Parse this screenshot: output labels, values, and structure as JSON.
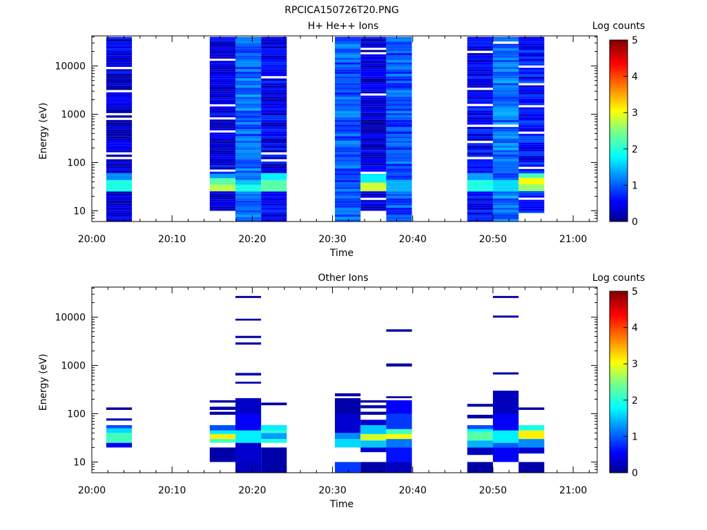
{
  "figure_title": "RPCICA150726T20.PNG",
  "chart_data": [
    {
      "type": "heatmap",
      "title": "H+ He++ Ions",
      "xlabel": "Time",
      "ylabel": "Energy (eV)",
      "colorbar_label": "Log counts",
      "x_ticks": [
        "20:00",
        "20:10",
        "20:20",
        "20:30",
        "20:40",
        "20:50",
        "21:00"
      ],
      "y_ticks": [
        "10",
        "100",
        "1000",
        "10000"
      ],
      "colorbar_ticks": [
        "0",
        "1",
        "2",
        "3",
        "4",
        "5"
      ],
      "xlim_minutes": [
        0,
        63
      ],
      "ylim_eV": [
        6,
        42000
      ],
      "y_scale": "log",
      "clim": [
        0,
        5
      ],
      "columns": [
        {
          "t0": 1.8,
          "t1": 5.0,
          "base": 0.45,
          "bot": 6,
          "top": 40000,
          "gaps": [
            1000,
            800,
            9000,
            3000,
            160,
            130
          ],
          "low": [
            [
              25,
              45,
              2.0
            ],
            [
              45,
              60,
              1.3
            ]
          ]
        },
        {
          "t0": 14.7,
          "t1": 17.9,
          "base": 0.5,
          "bot": 10,
          "top": 40000,
          "gaps": [
            800,
            450,
            1500,
            70,
            13000
          ],
          "low": [
            [
              25,
              35,
              2.8
            ],
            [
              35,
              45,
              2.3
            ],
            [
              45,
              60,
              1.4
            ]
          ]
        },
        {
          "t0": 17.9,
          "t1": 21.1,
          "base": 1.15,
          "bot": 6,
          "top": 40000,
          "gaps": [],
          "low": [
            [
              25,
              35,
              2.0
            ],
            [
              35,
              45,
              1.6
            ]
          ]
        },
        {
          "t0": 21.1,
          "t1": 24.3,
          "base": 0.55,
          "bot": 6,
          "top": 40000,
          "gaps": [
            110,
            160,
            6000
          ],
          "low": [
            [
              25,
              45,
              2.3
            ],
            [
              45,
              60,
              1.8
            ]
          ]
        },
        {
          "t0": 30.3,
          "t1": 33.5,
          "base": 1.05,
          "bot": 6,
          "top": 40000,
          "gaps": [],
          "low": []
        },
        {
          "t0": 33.5,
          "t1": 36.7,
          "base": 0.4,
          "bot": 10,
          "top": 40000,
          "gaps": [
            18000,
            22000,
            2500,
            60,
            18
          ],
          "low": [
            [
              25,
              40,
              2.9
            ],
            [
              40,
              60,
              1.8
            ]
          ]
        },
        {
          "t0": 36.7,
          "t1": 39.9,
          "base": 1.0,
          "bot": 6,
          "top": 40000,
          "gaps": [],
          "low": [
            [
              25,
              45,
              1.5
            ]
          ]
        },
        {
          "t0": 46.8,
          "t1": 50.0,
          "base": 0.6,
          "bot": 6,
          "top": 40000,
          "gaps": [
            19000,
            3300,
            1600,
            600,
            260,
            130
          ],
          "low": [
            [
              25,
              45,
              2.0
            ],
            [
              45,
              60,
              1.4
            ]
          ]
        },
        {
          "t0": 50.0,
          "t1": 53.2,
          "base": 1.2,
          "bot": 6,
          "top": 40000,
          "gaps": [
            30000,
            600
          ],
          "low": [
            [
              25,
              45,
              1.7
            ]
          ]
        },
        {
          "t0": 53.2,
          "t1": 56.4,
          "base": 0.7,
          "bot": 9,
          "top": 40000,
          "gaps": [
            10000,
            4000,
            1400,
            400,
            75,
            18
          ],
          "low": [
            [
              25,
              35,
              2.6
            ],
            [
              35,
              50,
              3.1
            ],
            [
              50,
              60,
              2.2
            ]
          ]
        }
      ]
    },
    {
      "type": "heatmap",
      "title": "Other Ions",
      "xlabel": "Time",
      "ylabel": "Energy (eV)",
      "colorbar_label": "Log counts",
      "x_ticks": [
        "20:00",
        "20:10",
        "20:20",
        "20:30",
        "20:40",
        "20:50",
        "21:00"
      ],
      "y_ticks": [
        "10",
        "100",
        "1000",
        "10000"
      ],
      "colorbar_ticks": [
        "0",
        "1",
        "2",
        "3",
        "4",
        "5"
      ],
      "xlim_minutes": [
        0,
        63
      ],
      "ylim_eV": [
        6,
        42000
      ],
      "y_scale": "log",
      "clim": [
        0,
        5
      ],
      "cells": [
        {
          "t0": 1.8,
          "t1": 5.0,
          "e0": 20,
          "e1": 25,
          "v": 0.6
        },
        {
          "t0": 1.8,
          "t1": 5.0,
          "e0": 25,
          "e1": 40,
          "v": 2.2
        },
        {
          "t0": 1.8,
          "t1": 5.0,
          "e0": 40,
          "e1": 50,
          "v": 1.7
        },
        {
          "t0": 1.8,
          "t1": 5.0,
          "e0": 50,
          "e1": 58,
          "v": 1.0
        },
        {
          "t0": 1.8,
          "t1": 5.0,
          "e0": 72,
          "e1": 80,
          "v": 0.3
        },
        {
          "t0": 1.8,
          "t1": 5.0,
          "e0": 120,
          "e1": 135,
          "v": 0.2
        },
        {
          "t0": 14.7,
          "t1": 17.9,
          "e0": 10,
          "e1": 20,
          "v": 0.2
        },
        {
          "t0": 14.7,
          "t1": 17.9,
          "e0": 25,
          "e1": 30,
          "v": 2.2
        },
        {
          "t0": 14.7,
          "t1": 17.9,
          "e0": 30,
          "e1": 38,
          "v": 3.2
        },
        {
          "t0": 14.7,
          "t1": 17.9,
          "e0": 38,
          "e1": 45,
          "v": 1.8
        },
        {
          "t0": 14.7,
          "t1": 17.9,
          "e0": 45,
          "e1": 58,
          "v": 1.0
        },
        {
          "t0": 14.7,
          "t1": 17.9,
          "e0": 95,
          "e1": 110,
          "v": 0.2
        },
        {
          "t0": 14.7,
          "t1": 17.9,
          "e0": 120,
          "e1": 140,
          "v": 0.2
        },
        {
          "t0": 14.7,
          "t1": 17.9,
          "e0": 170,
          "e1": 190,
          "v": 0.2
        },
        {
          "t0": 17.9,
          "t1": 21.1,
          "e0": 6,
          "e1": 10,
          "v": 0.3
        },
        {
          "t0": 17.9,
          "t1": 21.1,
          "e0": 10,
          "e1": 25,
          "v": 0.4
        },
        {
          "t0": 17.9,
          "t1": 21.1,
          "e0": 25,
          "e1": 45,
          "v": 1.8
        },
        {
          "t0": 17.9,
          "t1": 21.1,
          "e0": 45,
          "e1": 100,
          "v": 0.6
        },
        {
          "t0": 17.9,
          "t1": 21.1,
          "e0": 100,
          "e1": 210,
          "v": 0.35
        },
        {
          "t0": 17.9,
          "t1": 21.1,
          "e0": 420,
          "e1": 460,
          "v": 0.2
        },
        {
          "t0": 17.9,
          "t1": 21.1,
          "e0": 620,
          "e1": 700,
          "v": 0.2
        },
        {
          "t0": 17.9,
          "t1": 21.1,
          "e0": 2700,
          "e1": 3000,
          "v": 0.2
        },
        {
          "t0": 17.9,
          "t1": 21.1,
          "e0": 3700,
          "e1": 4100,
          "v": 0.2
        },
        {
          "t0": 17.9,
          "t1": 21.1,
          "e0": 8500,
          "e1": 9300,
          "v": 0.2
        },
        {
          "t0": 17.9,
          "t1": 21.1,
          "e0": 25000,
          "e1": 27500,
          "v": 0.2
        },
        {
          "t0": 21.1,
          "t1": 24.3,
          "e0": 6,
          "e1": 20,
          "v": 0.2
        },
        {
          "t0": 21.1,
          "t1": 24.3,
          "e0": 25,
          "e1": 30,
          "v": 2.0
        },
        {
          "t0": 21.1,
          "t1": 24.3,
          "e0": 30,
          "e1": 40,
          "v": 1.4
        },
        {
          "t0": 21.1,
          "t1": 24.3,
          "e0": 40,
          "e1": 45,
          "v": 2.1
        },
        {
          "t0": 21.1,
          "t1": 24.3,
          "e0": 45,
          "e1": 58,
          "v": 1.8
        },
        {
          "t0": 21.1,
          "t1": 24.3,
          "e0": 150,
          "e1": 170,
          "v": 0.2
        },
        {
          "t0": 30.3,
          "t1": 33.5,
          "e0": 6,
          "e1": 10,
          "v": 0.9
        },
        {
          "t0": 30.3,
          "t1": 33.5,
          "e0": 20,
          "e1": 30,
          "v": 1.7
        },
        {
          "t0": 30.3,
          "t1": 33.5,
          "e0": 30,
          "e1": 40,
          "v": 1.3
        },
        {
          "t0": 30.3,
          "t1": 33.5,
          "e0": 40,
          "e1": 100,
          "v": 0.4
        },
        {
          "t0": 30.3,
          "t1": 33.5,
          "e0": 100,
          "e1": 210,
          "v": 0.2
        },
        {
          "t0": 30.3,
          "t1": 33.5,
          "e0": 230,
          "e1": 265,
          "v": 0.2
        },
        {
          "t0": 33.5,
          "t1": 36.7,
          "e0": 6,
          "e1": 10,
          "v": 0.2
        },
        {
          "t0": 33.5,
          "t1": 36.7,
          "e0": 16,
          "e1": 20,
          "v": 0.4
        },
        {
          "t0": 33.5,
          "t1": 36.7,
          "e0": 20,
          "e1": 28,
          "v": 1.6
        },
        {
          "t0": 33.5,
          "t1": 36.7,
          "e0": 28,
          "e1": 38,
          "v": 2.9
        },
        {
          "t0": 33.5,
          "t1": 36.7,
          "e0": 38,
          "e1": 58,
          "v": 1.6
        },
        {
          "t0": 33.5,
          "t1": 36.7,
          "e0": 58,
          "e1": 75,
          "v": 0.4
        },
        {
          "t0": 33.5,
          "t1": 36.7,
          "e0": 95,
          "e1": 110,
          "v": 0.2
        },
        {
          "t0": 33.5,
          "t1": 36.7,
          "e0": 130,
          "e1": 150,
          "v": 0.2
        },
        {
          "t0": 33.5,
          "t1": 36.7,
          "e0": 170,
          "e1": 190,
          "v": 0.2
        },
        {
          "t0": 36.7,
          "t1": 39.9,
          "e0": 6,
          "e1": 10,
          "v": 0.3
        },
        {
          "t0": 36.7,
          "t1": 39.9,
          "e0": 10,
          "e1": 20,
          "v": 0.7
        },
        {
          "t0": 36.7,
          "t1": 39.9,
          "e0": 20,
          "e1": 30,
          "v": 1.2
        },
        {
          "t0": 36.7,
          "t1": 39.9,
          "e0": 30,
          "e1": 38,
          "v": 3.1
        },
        {
          "t0": 36.7,
          "t1": 39.9,
          "e0": 38,
          "e1": 48,
          "v": 2.2
        },
        {
          "t0": 36.7,
          "t1": 39.9,
          "e0": 48,
          "e1": 100,
          "v": 0.9
        },
        {
          "t0": 36.7,
          "t1": 39.9,
          "e0": 100,
          "e1": 190,
          "v": 0.6
        },
        {
          "t0": 36.7,
          "t1": 39.9,
          "e0": 210,
          "e1": 230,
          "v": 0.2
        },
        {
          "t0": 36.7,
          "t1": 39.9,
          "e0": 950,
          "e1": 1100,
          "v": 0.2
        },
        {
          "t0": 36.7,
          "t1": 39.9,
          "e0": 5000,
          "e1": 5600,
          "v": 0.2
        },
        {
          "t0": 46.8,
          "t1": 50.0,
          "e0": 6,
          "e1": 10,
          "v": 0.2
        },
        {
          "t0": 46.8,
          "t1": 50.0,
          "e0": 14,
          "e1": 20,
          "v": 0.3
        },
        {
          "t0": 46.8,
          "t1": 50.0,
          "e0": 20,
          "e1": 28,
          "v": 1.5
        },
        {
          "t0": 46.8,
          "t1": 50.0,
          "e0": 28,
          "e1": 42,
          "v": 2.3
        },
        {
          "t0": 46.8,
          "t1": 50.0,
          "e0": 42,
          "e1": 48,
          "v": 1.9
        },
        {
          "t0": 46.8,
          "t1": 50.0,
          "e0": 48,
          "e1": 58,
          "v": 1.0
        },
        {
          "t0": 46.8,
          "t1": 50.0,
          "e0": 80,
          "e1": 95,
          "v": 0.2
        },
        {
          "t0": 46.8,
          "t1": 50.0,
          "e0": 140,
          "e1": 160,
          "v": 0.2
        },
        {
          "t0": 50.0,
          "t1": 53.2,
          "e0": 10,
          "e1": 20,
          "v": 0.6
        },
        {
          "t0": 50.0,
          "t1": 53.2,
          "e0": 20,
          "e1": 25,
          "v": 1.1
        },
        {
          "t0": 50.0,
          "t1": 53.2,
          "e0": 25,
          "e1": 45,
          "v": 1.8
        },
        {
          "t0": 50.0,
          "t1": 53.2,
          "e0": 45,
          "e1": 100,
          "v": 0.6
        },
        {
          "t0": 50.0,
          "t1": 53.2,
          "e0": 100,
          "e1": 300,
          "v": 0.3
        },
        {
          "t0": 50.0,
          "t1": 53.2,
          "e0": 650,
          "e1": 720,
          "v": 0.2
        },
        {
          "t0": 50.0,
          "t1": 53.2,
          "e0": 9800,
          "e1": 10800,
          "v": 0.2
        },
        {
          "t0": 50.0,
          "t1": 53.2,
          "e0": 25000,
          "e1": 27500,
          "v": 0.2
        },
        {
          "t0": 53.2,
          "t1": 56.4,
          "e0": 6,
          "e1": 10,
          "v": 0.2
        },
        {
          "t0": 53.2,
          "t1": 56.4,
          "e0": 15,
          "e1": 20,
          "v": 0.4
        },
        {
          "t0": 53.2,
          "t1": 56.4,
          "e0": 20,
          "e1": 30,
          "v": 1.3
        },
        {
          "t0": 53.2,
          "t1": 56.4,
          "e0": 30,
          "e1": 45,
          "v": 3.2
        },
        {
          "t0": 53.2,
          "t1": 56.4,
          "e0": 45,
          "e1": 58,
          "v": 2.0
        },
        {
          "t0": 53.2,
          "t1": 56.4,
          "e0": 120,
          "e1": 135,
          "v": 0.2
        }
      ]
    }
  ]
}
